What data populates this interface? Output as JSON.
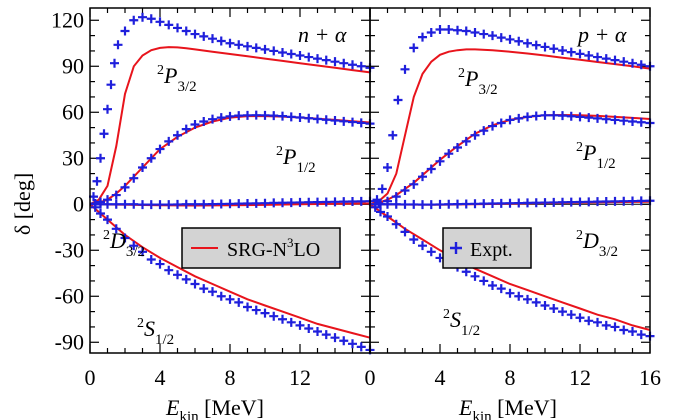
{
  "figure": {
    "y_axis_label": "δ [deg]",
    "x_axis_label_main": "E",
    "x_axis_label_sub": "kin",
    "x_axis_label_unit": " [MeV]"
  },
  "legend_left": {
    "label": "SRG-N",
    "label_sup": "3",
    "label_end": "LO",
    "color": "#e8141c"
  },
  "legend_right": {
    "label": "Expt.",
    "color": "#1f1fdc"
  },
  "chart_data": [
    {
      "type": "line",
      "title": "n + α",
      "xlim": [
        0,
        16
      ],
      "ylim": [
        -97,
        128
      ],
      "xticks": [
        0,
        4,
        8,
        12
      ],
      "yticks": [
        -90,
        -60,
        -30,
        0,
        30,
        60,
        90,
        120
      ],
      "x_tick_labels": [
        "0",
        "4",
        "8",
        "12"
      ],
      "y_tick_labels": [
        "-90",
        "-60",
        "-30",
        "0",
        "30",
        "60",
        "90",
        "120"
      ],
      "channel_labels": [
        {
          "pre": "2",
          "main": "P",
          "sub": "3/2"
        },
        {
          "pre": "2",
          "main": "P",
          "sub": "1/2"
        },
        {
          "pre": "2",
          "main": "D",
          "sub": "3/2"
        },
        {
          "pre": "2",
          "main": "S",
          "sub": "1/2"
        }
      ],
      "series": [
        {
          "name": "SRG-N3LO",
          "channel": "2P3/2",
          "x": [
            0,
            0.5,
            1,
            1.5,
            2,
            2.5,
            3,
            3.5,
            4,
            4.5,
            5,
            5.5,
            6,
            7,
            8,
            9,
            10,
            11,
            12,
            13,
            14,
            15,
            16
          ],
          "y": [
            0,
            3,
            12,
            38,
            72,
            90,
            97,
            100.5,
            102,
            102.5,
            102.3,
            101.8,
            101,
            99.5,
            98,
            96.5,
            95,
            93.5,
            92,
            90.5,
            89,
            87.5,
            86
          ]
        },
        {
          "name": "SRG-N3LO",
          "channel": "2P1/2",
          "x": [
            0,
            0.5,
            1,
            1.5,
            2,
            2.5,
            3,
            3.5,
            4,
            5,
            6,
            7,
            8,
            9,
            10,
            11,
            12,
            13,
            14,
            15,
            16
          ],
          "y": [
            0,
            1,
            3,
            7,
            12,
            18,
            24,
            30,
            36,
            44,
            50,
            54,
            56.5,
            57.5,
            57.5,
            57.2,
            56.6,
            55.8,
            55,
            54.2,
            53.3
          ]
        },
        {
          "name": "SRG-N3LO",
          "channel": "2D3/2",
          "x": [
            0,
            2,
            4,
            6,
            8,
            10,
            12,
            14,
            16
          ],
          "y": [
            0,
            -0.3,
            -0.6,
            -0.8,
            -0.7,
            -0.4,
            0,
            0.3,
            0.5
          ]
        },
        {
          "name": "SRG-N3LO",
          "channel": "2S1/2",
          "x": [
            0,
            1,
            2,
            3,
            4,
            5,
            6,
            7,
            8,
            9,
            10,
            11,
            12,
            13,
            14,
            15,
            16
          ],
          "y": [
            0,
            -10,
            -20,
            -28,
            -35,
            -41,
            -47,
            -52,
            -57,
            -62,
            -66,
            -70,
            -74,
            -78,
            -81,
            -84,
            -87
          ]
        },
        {
          "name": "Expt.",
          "channel": "2P3/2",
          "x": [
            0.2,
            0.4,
            0.6,
            0.8,
            1,
            1.2,
            1.4,
            1.6,
            2,
            2.5,
            3,
            3.5,
            4,
            4.5,
            5,
            5.5,
            6,
            6.5,
            7,
            7.5,
            8,
            8.5,
            9,
            9.5,
            10,
            10.5,
            11,
            11.5,
            12,
            12.5,
            13,
            13.5,
            14,
            14.5,
            15,
            15.5,
            16
          ],
          "y": [
            5,
            15,
            30,
            46,
            62,
            78,
            92,
            104,
            113,
            120,
            122,
            121,
            119,
            117,
            115,
            113,
            111,
            109.5,
            108,
            106.5,
            105,
            104,
            103,
            102,
            101,
            100,
            99,
            98,
            97,
            96,
            95,
            94,
            93,
            92,
            91,
            90,
            89
          ]
        },
        {
          "name": "Expt.",
          "channel": "2P1/2",
          "x": [
            0.3,
            0.6,
            1,
            1.5,
            2,
            2.5,
            3,
            3.5,
            4,
            4.5,
            5,
            5.5,
            6,
            6.5,
            7,
            7.5,
            8,
            8.5,
            9,
            9.5,
            10,
            10.5,
            11,
            11.5,
            12,
            12.5,
            13,
            13.5,
            14,
            14.5,
            15,
            15.5,
            16
          ],
          "y": [
            0.5,
            1.5,
            3,
            6,
            11,
            17,
            24,
            30,
            36,
            41,
            45,
            49,
            52,
            54,
            55.5,
            56.5,
            57.3,
            57.8,
            58,
            58.1,
            58,
            57.8,
            57.5,
            57,
            56.6,
            56.1,
            55.6,
            55.1,
            54.6,
            54.1,
            53.6,
            53.1,
            52.6
          ]
        },
        {
          "name": "Expt.",
          "channel": "2D3/2",
          "x": [
            0.3,
            0.6,
            1,
            1.5,
            2,
            2.5,
            3,
            3.5,
            4,
            4.5,
            5,
            5.5,
            6,
            6.5,
            7,
            7.5,
            8,
            8.5,
            9,
            9.5,
            10,
            10.5,
            11,
            11.5,
            12,
            12.5,
            13,
            13.5,
            14,
            14.5,
            15,
            15.5,
            16
          ],
          "y": [
            0,
            0,
            0,
            0,
            0,
            0,
            -0.2,
            -0.2,
            -0.2,
            -0.2,
            -0.1,
            0,
            0,
            0,
            0.1,
            0.2,
            0.3,
            0.4,
            0.5,
            0.6,
            0.7,
            0.9,
            1,
            1.1,
            1.2,
            1.3,
            1.4,
            1.5,
            1.6,
            1.7,
            1.8,
            1.9,
            2
          ]
        },
        {
          "name": "Expt.",
          "channel": "2S1/2",
          "x": [
            0.3,
            0.6,
            1,
            1.5,
            2,
            2.5,
            3,
            3.5,
            4,
            4.5,
            5,
            5.5,
            6,
            6.5,
            7,
            7.5,
            8,
            8.5,
            9,
            9.5,
            10,
            10.5,
            11,
            11.5,
            12,
            12.5,
            13,
            13.5,
            14,
            14.5,
            15,
            15.5,
            16
          ],
          "y": [
            -2,
            -6,
            -10,
            -16,
            -22,
            -27,
            -31,
            -36,
            -39,
            -43,
            -46,
            -49,
            -52,
            -55,
            -57,
            -60,
            -62,
            -64,
            -67,
            -69,
            -71,
            -73,
            -75,
            -77,
            -79,
            -81,
            -83,
            -85,
            -87,
            -89,
            -91,
            -93,
            -95
          ]
        }
      ]
    },
    {
      "type": "line",
      "title": "p + α",
      "xlim": [
        0,
        16
      ],
      "ylim": [
        -97,
        128
      ],
      "xticks": [
        0,
        4,
        8,
        12,
        16
      ],
      "yticks": [
        -90,
        -60,
        -30,
        0,
        30,
        60,
        90,
        120
      ],
      "x_tick_labels": [
        "0",
        "4",
        "8",
        "12",
        "16"
      ],
      "y_tick_labels": [],
      "channel_labels": [
        {
          "pre": "2",
          "main": "P",
          "sub": "3/2"
        },
        {
          "pre": "2",
          "main": "P",
          "sub": "1/2"
        },
        {
          "pre": "2",
          "main": "D",
          "sub": "3/2"
        },
        {
          "pre": "2",
          "main": "S",
          "sub": "1/2"
        }
      ],
      "series": [
        {
          "name": "SRG-N3LO",
          "channel": "2P3/2",
          "x": [
            0,
            0.5,
            1,
            1.5,
            2,
            2.5,
            3,
            3.5,
            4,
            4.5,
            5,
            5.5,
            6,
            7,
            8,
            9,
            10,
            11,
            12,
            13,
            14,
            15,
            16
          ],
          "y": [
            0,
            2,
            7,
            20,
            45,
            70,
            85,
            93,
            97.5,
            99.5,
            100.5,
            101,
            101,
            100.5,
            99.5,
            98.3,
            97,
            95.6,
            94.2,
            92.8,
            91.4,
            90,
            88.5
          ]
        },
        {
          "name": "SRG-N3LO",
          "channel": "2P1/2",
          "x": [
            0,
            0.5,
            1,
            1.5,
            2,
            2.5,
            3,
            3.5,
            4,
            5,
            6,
            7,
            8,
            9,
            10,
            11,
            12,
            13,
            14,
            15,
            16
          ],
          "y": [
            0,
            1,
            3,
            6,
            10,
            14,
            19,
            24,
            29,
            38,
            46,
            51.5,
            55,
            57,
            58,
            58.2,
            58,
            57.6,
            57,
            56.3,
            55.6
          ]
        },
        {
          "name": "SRG-N3LO",
          "channel": "2D3/2",
          "x": [
            0,
            2,
            4,
            6,
            8,
            10,
            12,
            14,
            16
          ],
          "y": [
            0,
            -0.2,
            -0.3,
            0,
            0.4,
            0.8,
            1.1,
            1.4,
            1.6
          ]
        },
        {
          "name": "SRG-N3LO",
          "channel": "2S1/2",
          "x": [
            0,
            1,
            2,
            3,
            4,
            5,
            6,
            7,
            8,
            9,
            10,
            11,
            12,
            13,
            14,
            15,
            16
          ],
          "y": [
            0,
            -8,
            -16,
            -23,
            -30,
            -36,
            -42,
            -47,
            -52,
            -56,
            -60,
            -64,
            -68,
            -72,
            -75,
            -79,
            -82
          ]
        },
        {
          "name": "Expt.",
          "channel": "2P3/2",
          "x": [
            0.4,
            0.7,
            1,
            1.3,
            1.6,
            2,
            2.5,
            3,
            3.5,
            4,
            4.5,
            5,
            5.5,
            6,
            6.5,
            7,
            7.5,
            8,
            8.5,
            9,
            9.5,
            10,
            10.5,
            11,
            11.5,
            12,
            12.5,
            13,
            13.5,
            14,
            14.5,
            15,
            15.5,
            16
          ],
          "y": [
            3,
            10,
            24,
            45,
            68,
            88,
            102,
            109,
            112,
            114,
            114,
            113.5,
            113,
            112,
            111,
            110,
            108.7,
            107.5,
            106.3,
            105,
            103.8,
            102.6,
            101.4,
            100.3,
            99.2,
            98.1,
            97,
            96,
            95,
            94,
            93,
            92,
            91,
            90
          ]
        },
        {
          "name": "Expt.",
          "channel": "2P1/2",
          "x": [
            0.5,
            1,
            1.5,
            2,
            2.5,
            3,
            3.5,
            4,
            4.5,
            5,
            5.5,
            6,
            6.5,
            7,
            7.5,
            8,
            8.5,
            9,
            9.5,
            10,
            10.5,
            11,
            11.5,
            12,
            12.5,
            13,
            13.5,
            14,
            14.5,
            15,
            15.5,
            16
          ],
          "y": [
            0.5,
            2,
            5,
            9,
            13,
            18,
            23,
            28,
            33,
            37,
            41,
            45,
            48,
            51,
            53,
            55,
            56,
            57,
            57.6,
            58,
            58,
            57.8,
            57.4,
            57,
            56.5,
            56,
            55.5,
            55,
            54.5,
            54,
            53.5,
            53
          ]
        },
        {
          "name": "Expt.",
          "channel": "2D3/2",
          "x": [
            0.3,
            0.6,
            1,
            1.5,
            2,
            2.5,
            3,
            3.5,
            4,
            4.5,
            5,
            5.5,
            6,
            6.5,
            7,
            7.5,
            8,
            8.5,
            9,
            9.5,
            10,
            10.5,
            11,
            11.5,
            12,
            12.5,
            13,
            13.5,
            14,
            14.5,
            15,
            15.5,
            16
          ],
          "y": [
            0,
            0,
            0,
            0,
            -0.1,
            -0.1,
            -0.2,
            -0.2,
            -0.1,
            0,
            0.1,
            0.2,
            0.3,
            0.4,
            0.5,
            0.6,
            0.7,
            0.8,
            0.9,
            1,
            1.1,
            1.2,
            1.3,
            1.4,
            1.5,
            1.6,
            1.7,
            1.8,
            1.9,
            2,
            2.1,
            2.2,
            2.3
          ]
        },
        {
          "name": "Expt.",
          "channel": "2S1/2",
          "x": [
            0.3,
            0.6,
            1,
            1.5,
            2,
            2.5,
            3,
            3.5,
            4,
            4.5,
            5,
            5.5,
            6,
            6.5,
            7,
            7.5,
            8,
            8.5,
            9,
            9.5,
            10,
            10.5,
            11,
            11.5,
            12,
            12.5,
            13,
            13.5,
            14,
            14.5,
            15,
            15.5,
            16
          ],
          "y": [
            -2,
            -5,
            -8,
            -13,
            -18,
            -23,
            -27,
            -31,
            -35,
            -38,
            -41,
            -44,
            -47,
            -50,
            -53,
            -55,
            -58,
            -60,
            -62,
            -64,
            -66,
            -68,
            -70,
            -72,
            -74,
            -76,
            -77,
            -79,
            -80,
            -82,
            -83,
            -85,
            -86
          ]
        }
      ]
    }
  ]
}
